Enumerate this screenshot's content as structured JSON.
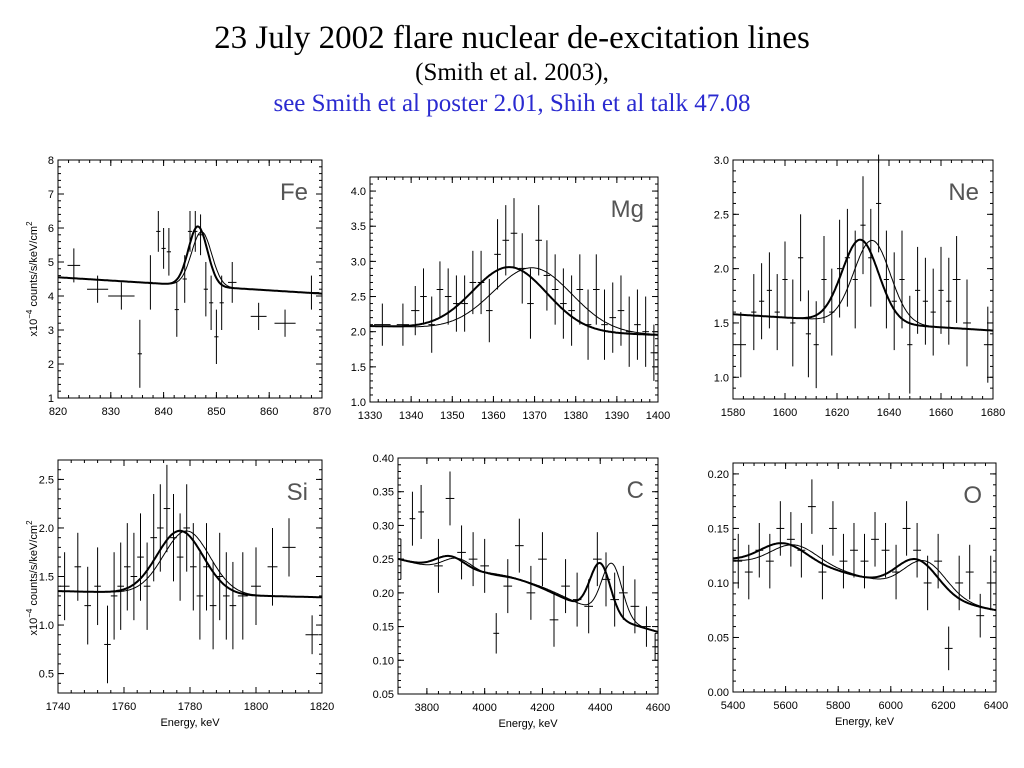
{
  "title": "23 July 2002 flare nuclear de-excitation lines",
  "subtitle": "(Smith et al. 2003),",
  "reference": "see Smith et al poster 2.01, Shih et al talk 47.08",
  "ylabel": {
    "prefix": "x10",
    "exp": "−4",
    "text": " counts/s/keV/cm",
    "sup": "2"
  },
  "chart_data": [
    {
      "type": "line",
      "element": "Fe",
      "xlabel": "",
      "xlim": [
        820,
        870
      ],
      "ylim": [
        1,
        8
      ],
      "xticks": [
        820,
        830,
        840,
        850,
        860,
        870
      ],
      "yticks": [
        1,
        2,
        3,
        4,
        5,
        6,
        7,
        8
      ],
      "fit": {
        "base": [
          4.55,
          -0.0096
        ],
        "peaks": [
          {
            "c": 846.5,
            "s": 1.8,
            "a": 1.75
          }
        ]
      },
      "shifted": {
        "base": [
          4.55,
          -0.0096
        ],
        "peaks": [
          {
            "c": 847.2,
            "s": 1.9,
            "a": 1.6
          }
        ]
      },
      "points": [
        [
          823,
          4.9,
          1.2,
          0.5
        ],
        [
          827.5,
          4.2,
          2,
          0.4
        ],
        [
          832,
          4.0,
          2.5,
          0.4
        ],
        [
          835.5,
          2.3,
          0.4,
          1.0
        ],
        [
          837.5,
          4.4,
          0.4,
          0.8
        ],
        [
          839,
          5.9,
          0.4,
          0.6
        ],
        [
          840,
          5.4,
          0.4,
          0.6
        ],
        [
          841,
          5.3,
          0.4,
          0.7
        ],
        [
          842.5,
          3.6,
          0.4,
          0.8
        ],
        [
          844,
          4.5,
          0.4,
          0.7
        ],
        [
          845,
          5.9,
          0.4,
          0.6
        ],
        [
          846,
          5.9,
          0.4,
          0.6
        ],
        [
          847,
          5.8,
          0.4,
          0.6
        ],
        [
          848,
          4.2,
          0.4,
          0.8
        ],
        [
          849,
          3.8,
          0.4,
          0.8
        ],
        [
          850,
          2.8,
          0.4,
          0.8
        ],
        [
          851,
          3.8,
          0.4,
          0.8
        ],
        [
          853,
          4.4,
          0.8,
          0.6
        ],
        [
          858,
          3.4,
          1.5,
          0.4
        ],
        [
          863,
          3.2,
          2,
          0.4
        ],
        [
          868,
          4.1,
          1.5,
          0.5
        ]
      ]
    },
    {
      "type": "line",
      "element": "Mg",
      "xlabel": "",
      "xlim": [
        1330,
        1400
      ],
      "ylim": [
        1.0,
        4.2
      ],
      "xticks": [
        1330,
        1340,
        1350,
        1360,
        1370,
        1380,
        1390,
        1400
      ],
      "yticks": [
        1.0,
        1.5,
        2.0,
        2.5,
        3.0,
        3.5,
        4.0
      ],
      "fit": {
        "base": [
          2.08,
          -0.0018
        ],
        "peaks": [
          {
            "c": 1364,
            "s": 9,
            "a": 0.9
          }
        ]
      },
      "shifted": {
        "base": [
          2.08,
          -0.0018
        ],
        "peaks": [
          {
            "c": 1369.5,
            "s": 9.5,
            "a": 0.9
          }
        ]
      },
      "points": [
        [
          1333,
          2.1,
          2,
          0.3
        ],
        [
          1338,
          2.1,
          1.5,
          0.3
        ],
        [
          1341,
          2.3,
          1,
          0.35
        ],
        [
          1343,
          2.5,
          0.8,
          0.4
        ],
        [
          1345,
          2.1,
          0.8,
          0.4
        ],
        [
          1347,
          2.6,
          0.8,
          0.4
        ],
        [
          1349,
          2.5,
          0.8,
          0.4
        ],
        [
          1351,
          2.4,
          0.8,
          0.4
        ],
        [
          1353,
          2.4,
          0.8,
          0.4
        ],
        [
          1355,
          2.7,
          0.8,
          0.45
        ],
        [
          1357,
          2.7,
          0.8,
          0.45
        ],
        [
          1359,
          2.3,
          0.8,
          0.45
        ],
        [
          1361,
          3.1,
          0.8,
          0.5
        ],
        [
          1363,
          3.3,
          0.8,
          0.5
        ],
        [
          1365,
          3.4,
          0.8,
          0.5
        ],
        [
          1367,
          2.9,
          0.8,
          0.5
        ],
        [
          1369,
          2.4,
          0.8,
          0.5
        ],
        [
          1371,
          3.3,
          0.8,
          0.5
        ],
        [
          1373,
          2.8,
          0.8,
          0.5
        ],
        [
          1375,
          2.6,
          0.8,
          0.5
        ],
        [
          1377,
          2.4,
          0.8,
          0.5
        ],
        [
          1379,
          2.3,
          0.8,
          0.5
        ],
        [
          1381,
          2.6,
          0.8,
          0.5
        ],
        [
          1383,
          2.1,
          0.8,
          0.5
        ],
        [
          1385,
          2.6,
          0.8,
          0.5
        ],
        [
          1387,
          2.1,
          0.8,
          0.5
        ],
        [
          1389,
          2.2,
          0.8,
          0.5
        ],
        [
          1391,
          2.3,
          0.8,
          0.5
        ],
        [
          1393,
          2.0,
          0.8,
          0.5
        ],
        [
          1395,
          2.1,
          0.8,
          0.5
        ],
        [
          1397,
          2.0,
          0.8,
          0.5
        ],
        [
          1399,
          1.7,
          0.8,
          0.4
        ]
      ]
    },
    {
      "type": "line",
      "element": "Ne",
      "xlabel": "",
      "xlim": [
        1580,
        1680
      ],
      "ylim": [
        0.8,
        3.0
      ],
      "xticks": [
        1580,
        1600,
        1620,
        1640,
        1660,
        1680
      ],
      "yticks": [
        1.0,
        1.5,
        2.0,
        2.5,
        3.0
      ],
      "fit": {
        "base": [
          1.58,
          -0.0015
        ],
        "peaks": [
          {
            "c": 1629,
            "s": 7,
            "a": 0.76
          }
        ]
      },
      "shifted": {
        "base": [
          1.58,
          -0.0015
        ],
        "peaks": [
          {
            "c": 1633.5,
            "s": 7,
            "a": 0.76
          }
        ]
      },
      "points": [
        [
          1583,
          1.3,
          2,
          0.3
        ],
        [
          1588,
          1.6,
          1,
          0.35
        ],
        [
          1591,
          1.7,
          1,
          0.35
        ],
        [
          1594,
          1.8,
          1,
          0.35
        ],
        [
          1597,
          1.6,
          1,
          0.35
        ],
        [
          1600,
          1.9,
          1,
          0.35
        ],
        [
          1603,
          1.5,
          1,
          0.4
        ],
        [
          1606,
          2.1,
          1,
          0.4
        ],
        [
          1609,
          1.4,
          1,
          0.4
        ],
        [
          1612,
          1.3,
          1,
          0.4
        ],
        [
          1615,
          1.9,
          1,
          0.4
        ],
        [
          1618,
          1.6,
          1,
          0.4
        ],
        [
          1621,
          2.0,
          1,
          0.45
        ],
        [
          1624,
          2.1,
          1,
          0.45
        ],
        [
          1627,
          1.9,
          1,
          0.45
        ],
        [
          1630,
          2.4,
          1,
          0.45
        ],
        [
          1633,
          2.1,
          1,
          0.45
        ],
        [
          1636,
          2.6,
          1,
          0.45
        ],
        [
          1639,
          1.9,
          1,
          0.45
        ],
        [
          1642,
          1.7,
          1,
          0.45
        ],
        [
          1645,
          1.9,
          1,
          0.45
        ],
        [
          1648,
          1.3,
          1,
          0.45
        ],
        [
          1651,
          1.8,
          1,
          0.4
        ],
        [
          1654,
          1.7,
          1,
          0.4
        ],
        [
          1657,
          1.6,
          1,
          0.4
        ],
        [
          1660,
          1.8,
          1,
          0.4
        ],
        [
          1663,
          1.7,
          1,
          0.4
        ],
        [
          1666,
          1.9,
          1.5,
          0.4
        ],
        [
          1670,
          1.5,
          1.5,
          0.4
        ],
        [
          1678,
          1.3,
          1.5,
          0.35
        ]
      ]
    },
    {
      "type": "line",
      "element": "Si",
      "xlabel": "Energy, keV",
      "xlim": [
        1740,
        1820
      ],
      "ylim": [
        0.3,
        2.7
      ],
      "xticks": [
        1740,
        1760,
        1780,
        1800,
        1820
      ],
      "yticks": [
        0.5,
        1.0,
        1.5,
        2.0,
        2.5
      ],
      "fit": {
        "base": [
          1.35,
          -0.0008
        ],
        "peaks": [
          {
            "c": 1777,
            "s": 7,
            "a": 0.65
          }
        ]
      },
      "shifted": {
        "base": [
          1.35,
          -0.0008
        ],
        "peaks": [
          {
            "c": 1779,
            "s": 7,
            "a": 0.65
          }
        ]
      },
      "points": [
        [
          1742,
          1.4,
          1.5,
          0.35
        ],
        [
          1746,
          1.6,
          1,
          0.35
        ],
        [
          1749,
          1.2,
          1,
          0.4
        ],
        [
          1752,
          1.4,
          1,
          0.4
        ],
        [
          1755,
          0.8,
          1,
          0.4
        ],
        [
          1757,
          1.3,
          1,
          0.45
        ],
        [
          1759,
          1.4,
          1,
          0.45
        ],
        [
          1761,
          1.6,
          1,
          0.45
        ],
        [
          1763,
          1.5,
          1,
          0.45
        ],
        [
          1765,
          1.7,
          1,
          0.45
        ],
        [
          1767,
          1.4,
          1,
          0.45
        ],
        [
          1769,
          1.9,
          1,
          0.45
        ],
        [
          1771,
          2.0,
          1,
          0.45
        ],
        [
          1773,
          2.2,
          1,
          0.45
        ],
        [
          1775,
          1.9,
          1,
          0.45
        ],
        [
          1777,
          1.7,
          1,
          0.45
        ],
        [
          1779,
          2.0,
          1,
          0.45
        ],
        [
          1781,
          1.6,
          1,
          0.45
        ],
        [
          1783,
          1.3,
          1,
          0.45
        ],
        [
          1785,
          1.6,
          1,
          0.45
        ],
        [
          1787,
          1.2,
          1,
          0.45
        ],
        [
          1789,
          1.5,
          1,
          0.45
        ],
        [
          1791,
          1.3,
          1,
          0.45
        ],
        [
          1793,
          1.2,
          1,
          0.45
        ],
        [
          1796,
          1.3,
          1.5,
          0.45
        ],
        [
          1800,
          1.4,
          1.5,
          0.4
        ],
        [
          1805,
          1.6,
          1.5,
          0.4
        ],
        [
          1810,
          1.8,
          2,
          0.3
        ],
        [
          1817,
          0.9,
          2,
          0.2
        ]
      ]
    },
    {
      "type": "line",
      "element": "C",
      "xlabel": "Energy, keV",
      "xlim": [
        3700,
        4600
      ],
      "ylim": [
        0.05,
        0.4
      ],
      "xticks": [
        3800,
        4000,
        4200,
        4400,
        4600
      ],
      "yticks": [
        0.05,
        0.1,
        0.15,
        0.2,
        0.25,
        0.3,
        0.35,
        0.4
      ],
      "fit": {
        "base": [
          0.25,
          -0.00012
        ],
        "peaks": [
          {
            "c": 3880,
            "s": 50,
            "a": 0.02
          },
          {
            "c": 4110,
            "s": 150,
            "a": 0.02
          },
          {
            "c": 4400,
            "s": 35,
            "a": 0.075
          }
        ]
      },
      "shifted": {
        "base": [
          0.25,
          -0.00012
        ],
        "peaks": [
          {
            "c": 3905,
            "s": 50,
            "a": 0.02
          },
          {
            "c": 4140,
            "s": 150,
            "a": 0.02
          },
          {
            "c": 4440,
            "s": 35,
            "a": 0.08
          }
        ]
      },
      "points": [
        [
          3710,
          0.25,
          10,
          0.03
        ],
        [
          3750,
          0.31,
          10,
          0.04
        ],
        [
          3780,
          0.32,
          10,
          0.04
        ],
        [
          3840,
          0.24,
          15,
          0.04
        ],
        [
          3880,
          0.34,
          15,
          0.04
        ],
        [
          3920,
          0.26,
          15,
          0.04
        ],
        [
          3960,
          0.25,
          15,
          0.04
        ],
        [
          4000,
          0.24,
          15,
          0.04
        ],
        [
          4040,
          0.14,
          10,
          0.03
        ],
        [
          4080,
          0.21,
          15,
          0.04
        ],
        [
          4120,
          0.27,
          15,
          0.04
        ],
        [
          4160,
          0.2,
          15,
          0.04
        ],
        [
          4200,
          0.25,
          15,
          0.04
        ],
        [
          4240,
          0.16,
          15,
          0.04
        ],
        [
          4280,
          0.21,
          15,
          0.04
        ],
        [
          4320,
          0.19,
          15,
          0.04
        ],
        [
          4360,
          0.18,
          15,
          0.04
        ],
        [
          4390,
          0.25,
          15,
          0.04
        ],
        [
          4420,
          0.22,
          15,
          0.04
        ],
        [
          4450,
          0.19,
          15,
          0.04
        ],
        [
          4480,
          0.2,
          15,
          0.04
        ],
        [
          4520,
          0.18,
          15,
          0.04
        ],
        [
          4560,
          0.15,
          15,
          0.03
        ],
        [
          4590,
          0.12,
          10,
          0.02
        ]
      ]
    },
    {
      "type": "line",
      "element": "O",
      "xlabel": "Energy, keV",
      "xlim": [
        5400,
        6400
      ],
      "ylim": [
        0.0,
        0.21
      ],
      "xticks": [
        5400,
        5600,
        5800,
        6000,
        6200,
        6400
      ],
      "yticks": [
        0.0,
        0.05,
        0.1,
        0.15,
        0.2
      ],
      "fit": {
        "base": [
          0.12,
          -4.5e-05
        ],
        "peaks": [
          {
            "c": 5590,
            "s": 90,
            "a": 0.022
          },
          {
            "c": 5800,
            "s": 150,
            "a": 0.008
          },
          {
            "c": 6100,
            "s": 80,
            "a": 0.032
          }
        ]
      },
      "shifted": {
        "base": [
          0.12,
          -4.5e-05
        ],
        "peaks": [
          {
            "c": 5630,
            "s": 90,
            "a": 0.022
          },
          {
            "c": 5830,
            "s": 150,
            "a": 0.008
          },
          {
            "c": 6130,
            "s": 80,
            "a": 0.032
          }
        ]
      },
      "points": [
        [
          5420,
          0.12,
          15,
          0.025
        ],
        [
          5460,
          0.11,
          15,
          0.025
        ],
        [
          5500,
          0.13,
          15,
          0.025
        ],
        [
          5540,
          0.12,
          15,
          0.025
        ],
        [
          5580,
          0.15,
          15,
          0.025
        ],
        [
          5620,
          0.14,
          15,
          0.025
        ],
        [
          5660,
          0.13,
          15,
          0.025
        ],
        [
          5700,
          0.17,
          15,
          0.025
        ],
        [
          5740,
          0.11,
          15,
          0.025
        ],
        [
          5780,
          0.15,
          15,
          0.025
        ],
        [
          5820,
          0.12,
          15,
          0.025
        ],
        [
          5860,
          0.13,
          15,
          0.025
        ],
        [
          5900,
          0.12,
          15,
          0.025
        ],
        [
          5940,
          0.14,
          15,
          0.025
        ],
        [
          5980,
          0.13,
          15,
          0.025
        ],
        [
          6020,
          0.11,
          15,
          0.025
        ],
        [
          6060,
          0.15,
          15,
          0.025
        ],
        [
          6100,
          0.13,
          15,
          0.025
        ],
        [
          6140,
          0.1,
          15,
          0.025
        ],
        [
          6180,
          0.12,
          15,
          0.025
        ],
        [
          6220,
          0.04,
          15,
          0.02
        ],
        [
          6260,
          0.1,
          15,
          0.025
        ],
        [
          6300,
          0.11,
          15,
          0.025
        ],
        [
          6340,
          0.07,
          15,
          0.02
        ],
        [
          6380,
          0.1,
          15,
          0.025
        ]
      ]
    }
  ]
}
